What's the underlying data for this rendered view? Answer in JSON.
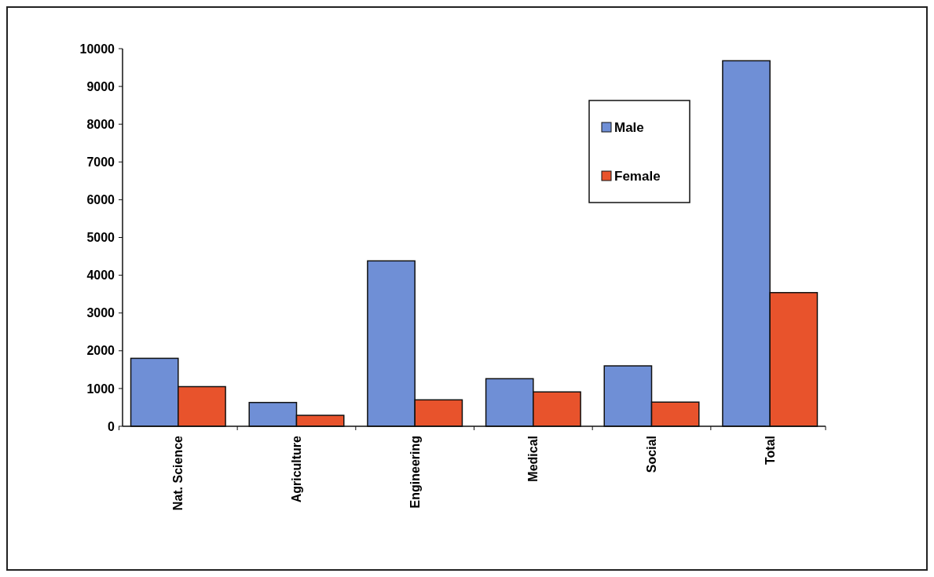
{
  "chart_data": {
    "type": "bar",
    "categories": [
      "Nat. Science",
      "Agriculture",
      "Engineering",
      "Medical",
      "Social",
      "Total"
    ],
    "series": [
      {
        "name": "Male",
        "color": "#6f8fd6",
        "values": [
          1800,
          630,
          4380,
          1260,
          1600,
          9680
        ]
      },
      {
        "name": "Female",
        "color": "#e8532c",
        "values": [
          1050,
          290,
          700,
          910,
          640,
          3540
        ]
      }
    ],
    "ylim": [
      0,
      10000
    ],
    "yticks": [
      0,
      1000,
      2000,
      3000,
      4000,
      5000,
      6000,
      7000,
      8000,
      9000,
      10000
    ],
    "grid": false,
    "legend": "top right"
  }
}
